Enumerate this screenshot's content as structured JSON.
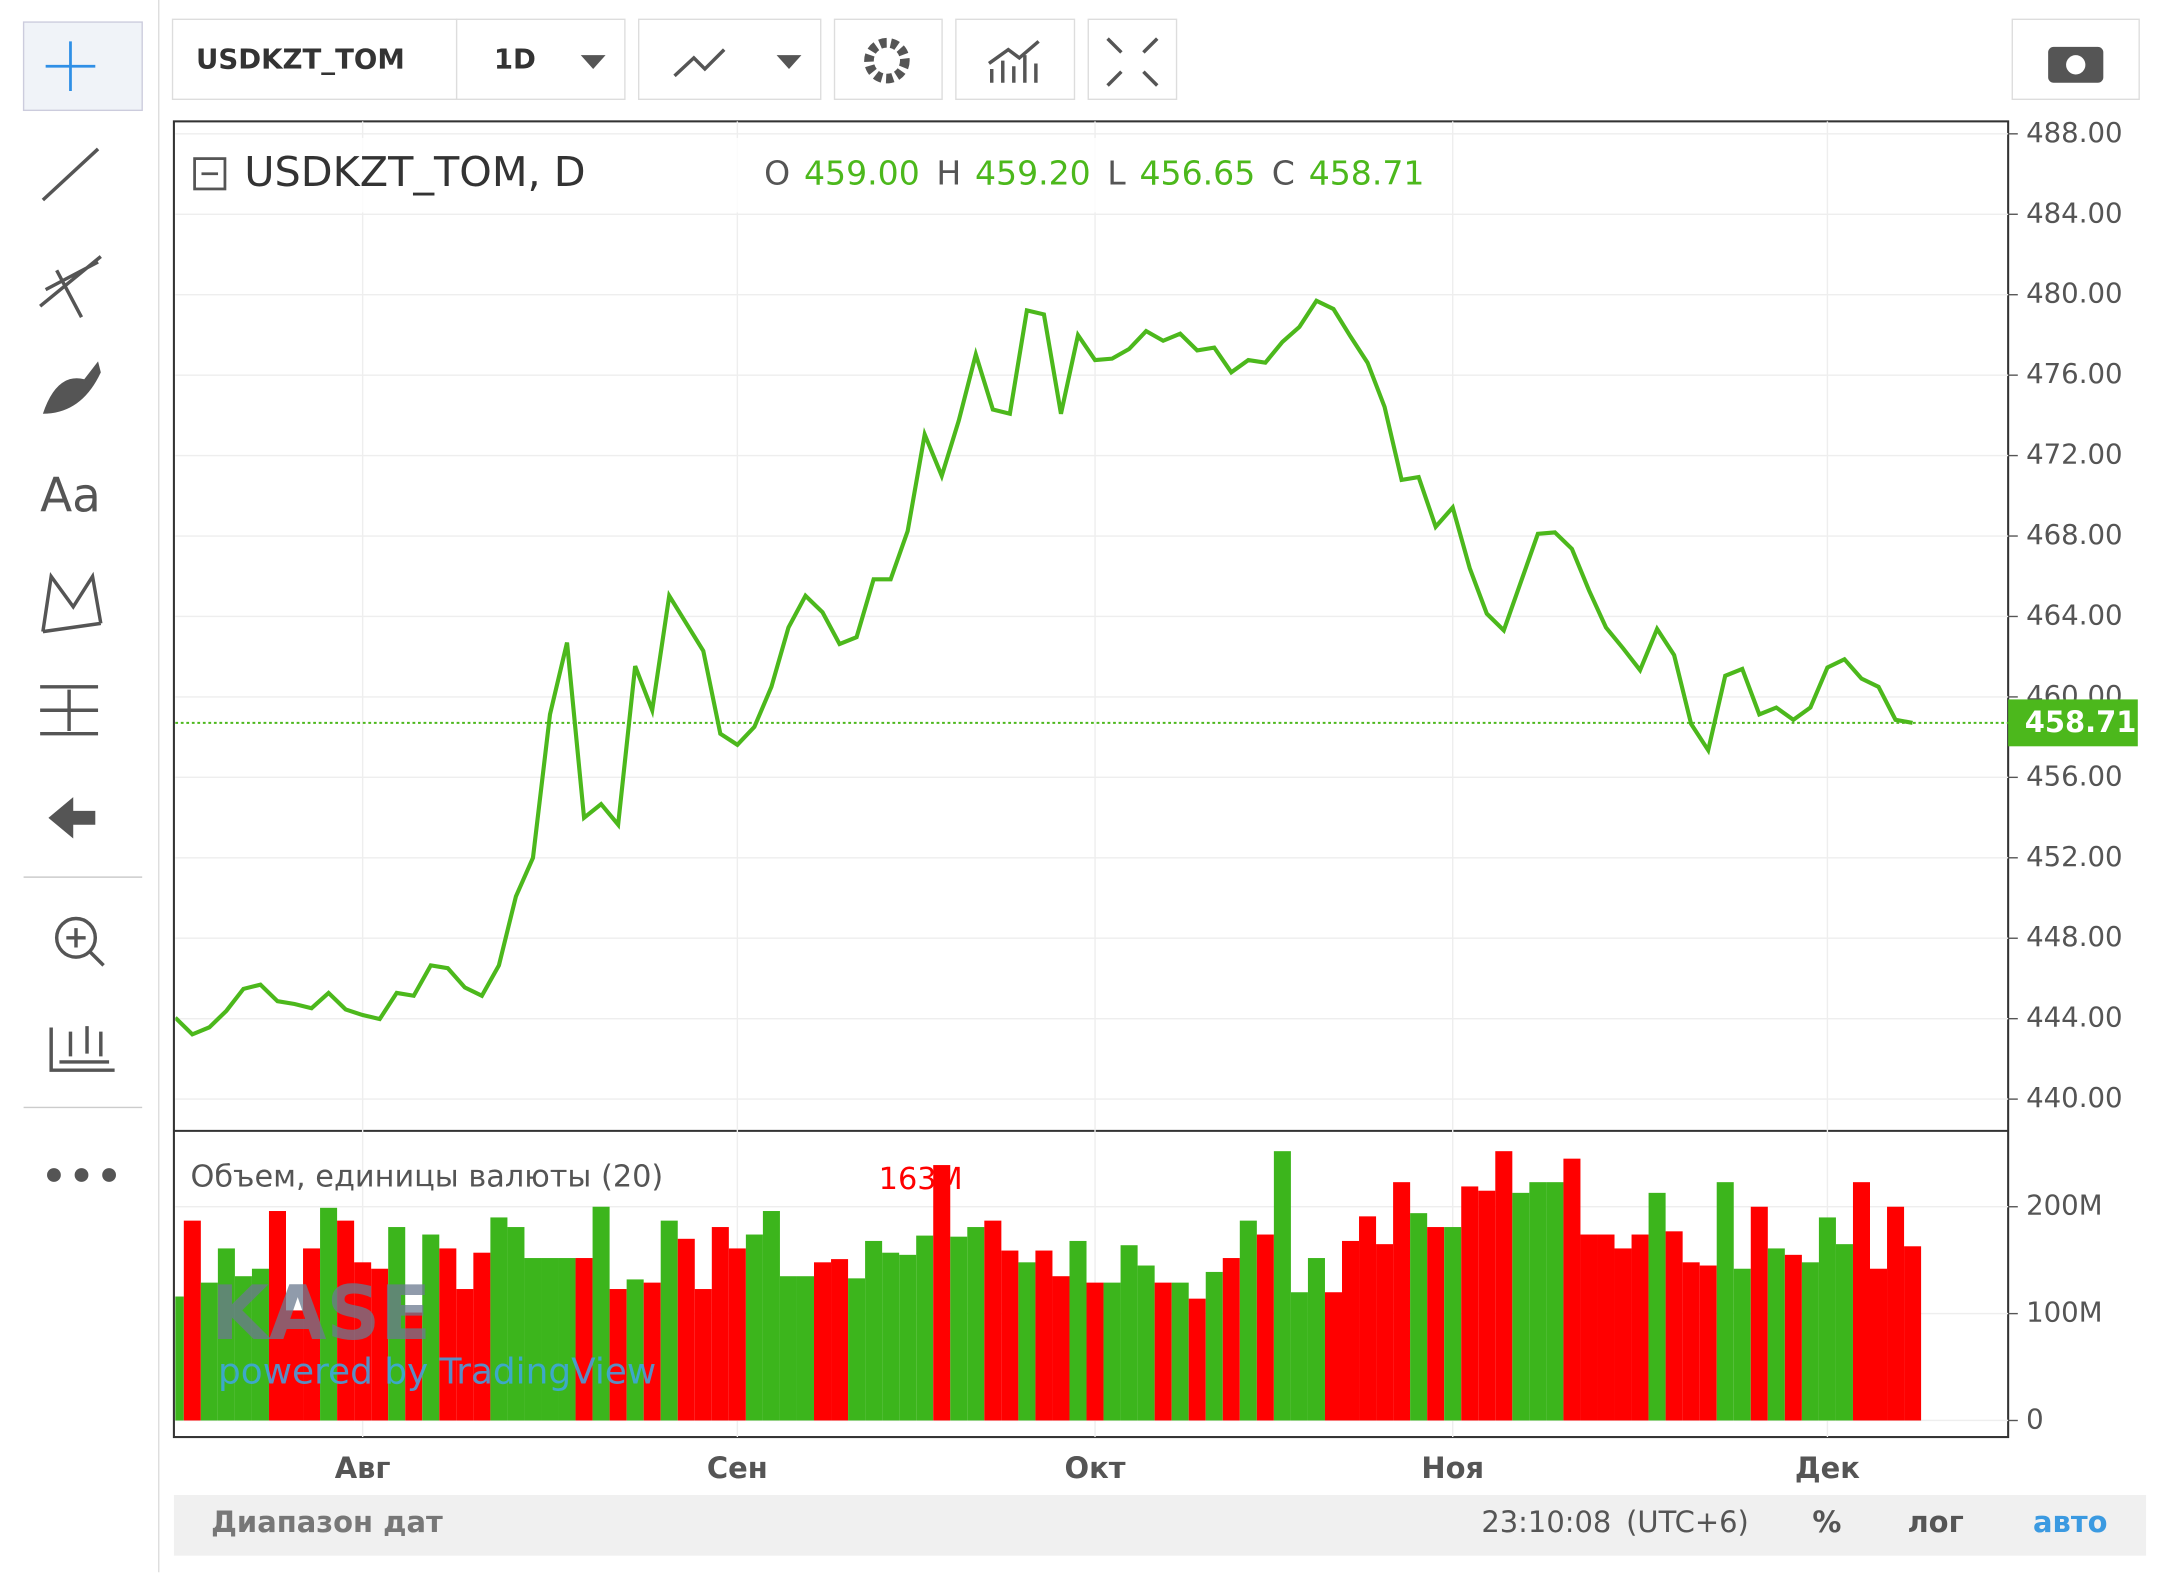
{
  "ui": {
    "symbol": "USDKZT_TOM",
    "interval": "1D",
    "text_tool": "Aa",
    "watermark": "KASE",
    "watermark_sub": "powered by TradingView",
    "date_range": "Диапазон дат",
    "clock": "23:10:08",
    "timezone": "(UTC+6)",
    "percent": "%",
    "log": "лог",
    "auto": "авто"
  },
  "chart_data": [
    {
      "type": "line",
      "title": "USDKZT_TOM, D",
      "ohlc": {
        "labels": [
          "O",
          "H",
          "L",
          "C"
        ],
        "values": [
          459.0,
          459.2,
          456.65,
          458.71
        ],
        "value_labels": [
          "459.00",
          "459.20",
          "456.65",
          "458.71"
        ]
      },
      "categories": [
        null,
        null,
        null,
        null,
        null,
        null,
        null,
        null,
        null,
        null,
        null,
        "Авг",
        null,
        null,
        null,
        null,
        null,
        null,
        null,
        null,
        null,
        null,
        null,
        null,
        null,
        null,
        null,
        null,
        null,
        null,
        null,
        null,
        null,
        "Сен",
        null,
        null,
        null,
        null,
        null,
        null,
        null,
        null,
        null,
        null,
        null,
        null,
        null,
        null,
        null,
        null,
        null,
        null,
        null,
        null,
        "Окт",
        null,
        null,
        null,
        null,
        null,
        null,
        null,
        null,
        null,
        null,
        null,
        null,
        null,
        null,
        null,
        null,
        null,
        null,
        null,
        null,
        "Ноя",
        null,
        null,
        null,
        null,
        null,
        null,
        null,
        null,
        null,
        null,
        null,
        null,
        null,
        null,
        null,
        null,
        null,
        null,
        null,
        null,
        null,
        "Дек",
        null,
        null,
        null,
        null,
        null
      ],
      "series": [
        {
          "color": "#4cb81c",
          "values": [
            444.05,
            443.22,
            443.57,
            444.39,
            445.48,
            445.69,
            444.87,
            444.73,
            444.52,
            445.28,
            444.46,
            444.18,
            443.98,
            445.28,
            445.14,
            446.65,
            446.51,
            445.55,
            445.14,
            446.65,
            450.08,
            452,
            459.13,
            462.7,
            453.99,
            454.67,
            453.65,
            461.53,
            459.34,
            465.03,
            463.66,
            462.29,
            458.17,
            457.62,
            458.51,
            460.5,
            463.45,
            465.03,
            464.21,
            462.63,
            462.97,
            465.85,
            465.85,
            468.25,
            473.05,
            470.99,
            473.74,
            477.03,
            474.29,
            474.08,
            479.22,
            479.02,
            474.08,
            477.99,
            476.75,
            476.82,
            477.3,
            478.19,
            477.71,
            478.06,
            477.23,
            477.37,
            476.14,
            476.75,
            476.62,
            477.65,
            478.4,
            479.7,
            479.29,
            477.92,
            476.62,
            474.42,
            470.79,
            470.93,
            468.46,
            469.42,
            466.4,
            464.14,
            463.31,
            465.71,
            468.11,
            468.18,
            467.36,
            465.3,
            463.45,
            462.42,
            461.33,
            463.38,
            462.08,
            458.65,
            457.35,
            461.05,
            461.39,
            459.13,
            459.47,
            458.86,
            459.47,
            461.46,
            461.87,
            460.91,
            460.5,
            458.86,
            458.71
          ]
        }
      ],
      "ylim": [
        438.42,
        488.62
      ],
      "yticks": [
        {
          "value": 440,
          "label": "440.00"
        },
        {
          "value": 444,
          "label": "444.00"
        },
        {
          "value": 448,
          "label": "448.00"
        },
        {
          "value": 452,
          "label": "452.00"
        },
        {
          "value": 456,
          "label": "456.00"
        },
        {
          "value": 460,
          "label": "460.00"
        },
        {
          "value": 464,
          "label": "464.00"
        },
        {
          "value": 468,
          "label": "468.00"
        },
        {
          "value": 472,
          "label": "472.00"
        },
        {
          "value": 476,
          "label": "476.00"
        },
        {
          "value": 480,
          "label": "480.00"
        },
        {
          "value": 484,
          "label": "484.00"
        },
        {
          "value": 488,
          "label": "488.00"
        }
      ],
      "grid": true
    },
    {
      "type": "bar",
      "title": "Объем, единицы валюты (20)",
      "last_value_label": "163M",
      "up_color": "#3cb51c",
      "down_color": "#ff0000",
      "label_color": "#ff0000",
      "values": [
        116,
        187,
        129,
        161,
        135,
        142,
        196,
        103,
        161,
        199,
        187,
        148,
        142,
        181,
        101,
        174,
        161,
        123,
        157,
        190,
        181,
        152,
        152,
        152,
        152,
        200,
        123,
        132,
        129,
        187,
        170,
        123,
        181,
        161,
        174,
        196,
        135,
        135,
        148,
        151,
        133,
        168,
        157,
        155,
        173,
        239,
        172,
        181,
        187,
        159,
        148,
        159,
        135,
        168,
        129,
        129,
        164,
        145,
        129,
        129,
        114,
        139,
        152,
        187,
        174,
        252,
        120,
        152,
        120,
        168,
        191,
        165,
        223,
        194,
        181,
        181,
        219,
        215,
        252,
        213,
        223,
        223,
        245,
        174,
        174,
        161,
        174,
        213,
        177,
        148,
        145,
        223,
        142,
        200,
        161,
        155,
        148,
        190,
        165,
        223,
        142,
        200,
        163
      ],
      "ylim": [
        -15.5,
        268.4
      ],
      "yticks": [
        0,
        {
          "value": 100,
          "label": "100M"
        },
        {
          "value": 200,
          "label": "200M"
        }
      ],
      "grid": true
    }
  ]
}
